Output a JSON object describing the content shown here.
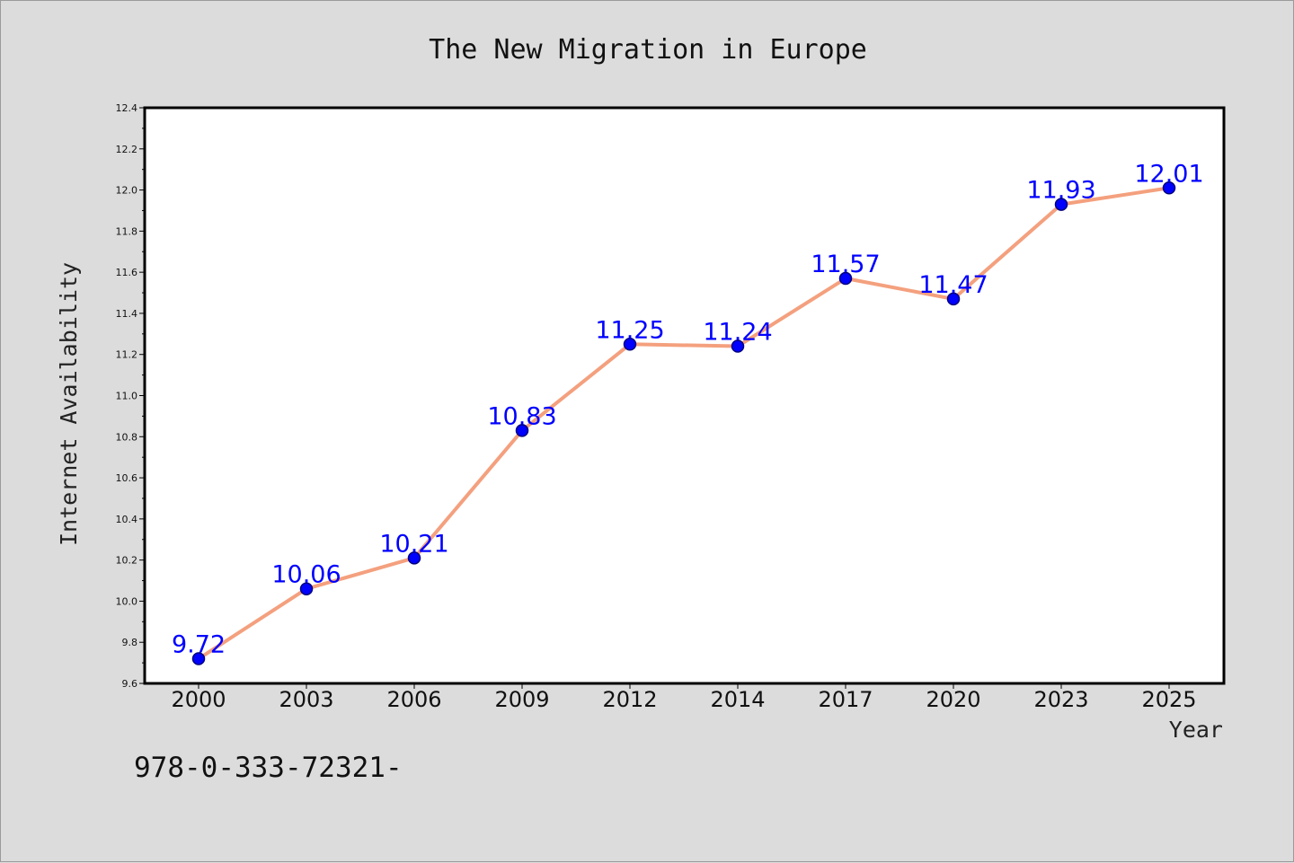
{
  "chart_data": {
    "type": "line",
    "title": "The New Migration in Europe",
    "xlabel": "Year",
    "ylabel": "Internet Availability",
    "categories": [
      "2000",
      "2003",
      "2006",
      "2009",
      "2012",
      "2014",
      "2017",
      "2020",
      "2023",
      "2025"
    ],
    "series": [
      {
        "values": [
          9.72,
          10.06,
          10.21,
          10.83,
          11.25,
          11.24,
          11.57,
          11.47,
          11.93,
          12.01
        ],
        "data_labels": [
          "9.72",
          "10.06",
          "10.21",
          "10.83",
          "11.25",
          "11.24",
          "11.57",
          "11.47",
          "11.93",
          "12.01"
        ]
      }
    ],
    "ylim": [
      9.6,
      12.4
    ],
    "yticks": [
      "9.6",
      "9.8",
      "10.0",
      "10.2",
      "10.4",
      "10.6",
      "10.8",
      "11.0",
      "11.2",
      "11.4",
      "11.6",
      "11.8",
      "12.0",
      "12.2",
      "12.4"
    ],
    "grid": false,
    "legend": "none",
    "colors": {
      "line": "#f4a07e",
      "marker": "#0000ff",
      "marker_edge": "#000080",
      "data_label": "#0000ff",
      "background": "#dcdcdc",
      "plot_background": "#ffffff"
    }
  },
  "footnote": "978-0-333-72321-"
}
